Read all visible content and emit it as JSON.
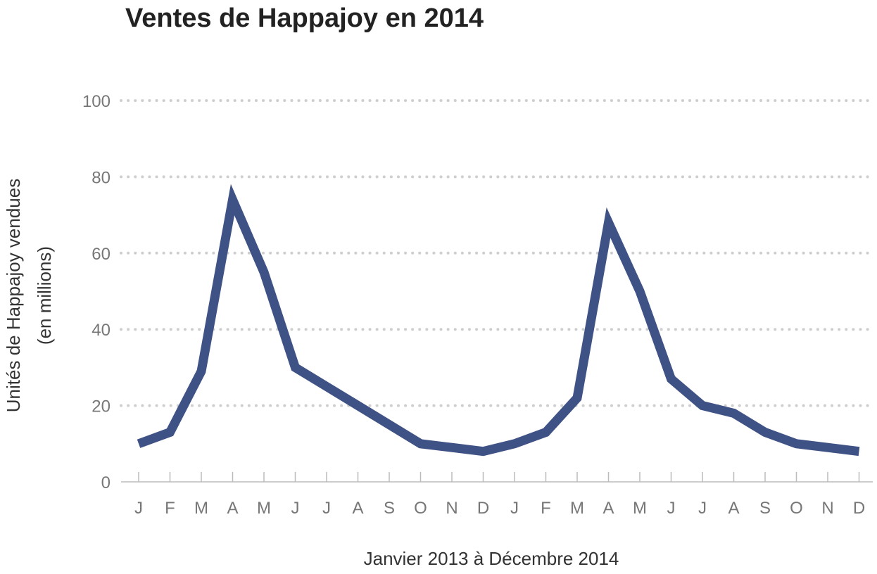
{
  "chart_data": {
    "type": "line",
    "title": "Ventes de Happajoy en 2014",
    "xlabel": "Janvier 2013 à Décembre 2014",
    "ylabel_line1": "Unités de Happajoy vendues",
    "ylabel_line2": "(en millions)",
    "ylim": [
      0,
      100
    ],
    "yticks": [
      0,
      20,
      40,
      60,
      80,
      100
    ],
    "grid": "horizontal-dotted",
    "categories": [
      "J",
      "F",
      "M",
      "A",
      "M",
      "J",
      "J",
      "A",
      "S",
      "O",
      "N",
      "D",
      "J",
      "F",
      "M",
      "A",
      "M",
      "J",
      "J",
      "A",
      "S",
      "O",
      "N",
      "D"
    ],
    "series": [
      {
        "values": [
          10,
          13,
          29,
          74,
          55,
          30,
          25,
          20,
          15,
          10,
          9,
          8,
          10,
          13,
          22,
          68,
          50,
          27,
          20,
          18,
          13,
          10,
          9,
          8
        ]
      }
    ],
    "colors": {
      "line": "#3f5285",
      "grid": "#cfcfcf",
      "axis": "#bbbbbb"
    }
  }
}
